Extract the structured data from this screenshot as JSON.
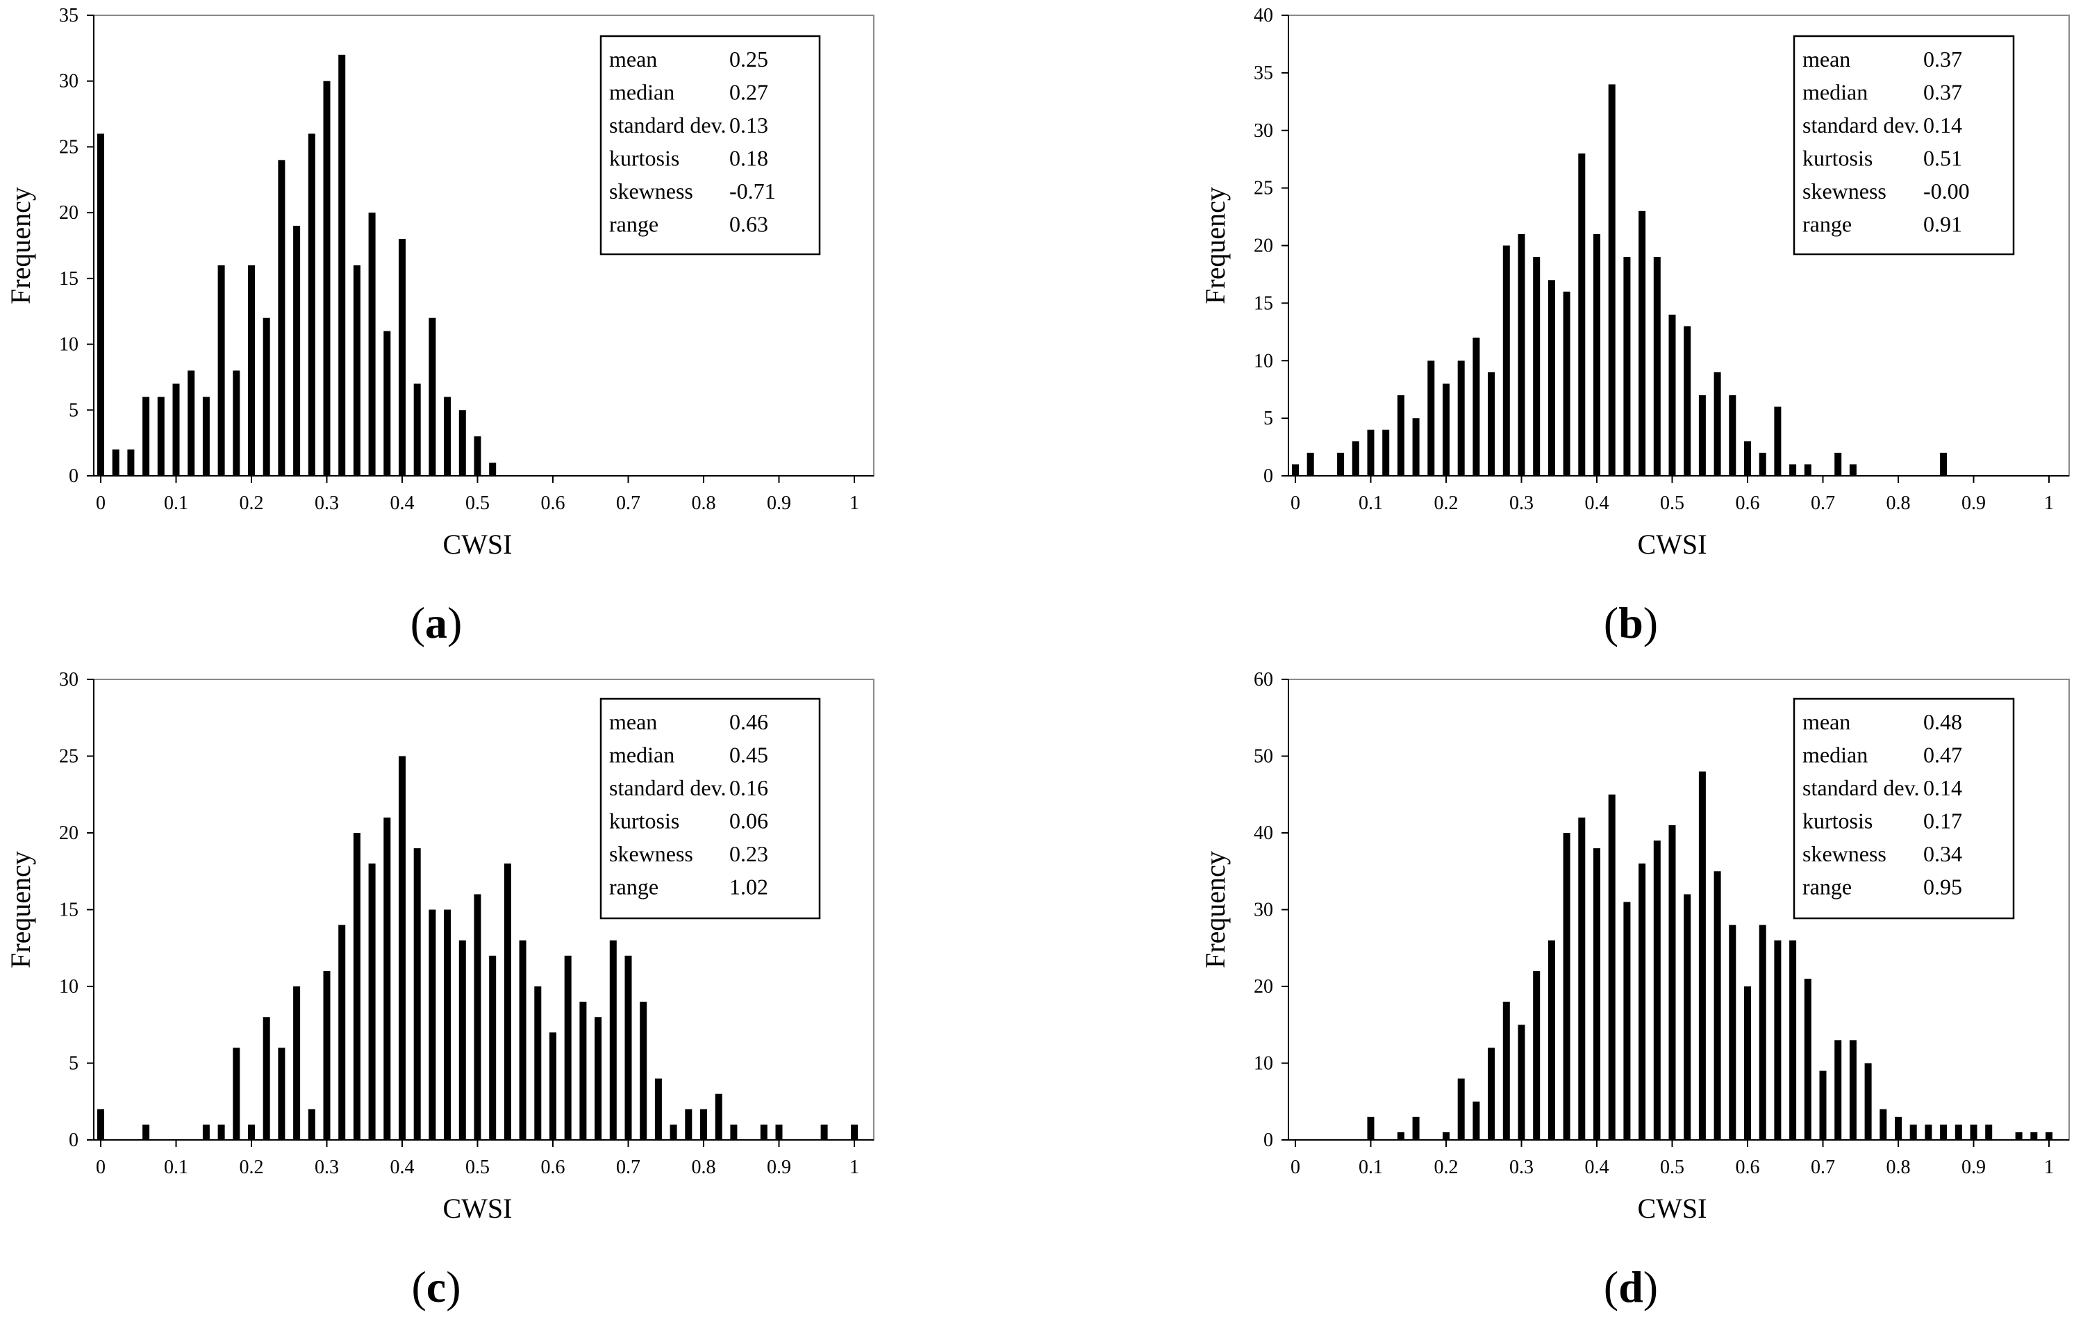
{
  "figure": {
    "panels": [
      "a",
      "b",
      "c",
      "d"
    ]
  },
  "chart_data": [
    {
      "id": "a",
      "panel_label": "a",
      "type": "bar",
      "xlabel": "CWSI",
      "ylabel": "Frequency",
      "xlim": [
        0,
        1
      ],
      "ylim": [
        0,
        35
      ],
      "xticks": [
        "0",
        "0.1",
        "0.2",
        "0.3",
        "0.4",
        "0.5",
        "0.6",
        "0.7",
        "0.8",
        "0.9",
        "1"
      ],
      "yticks": [
        "0",
        "5",
        "10",
        "15",
        "20",
        "25",
        "30",
        "35"
      ],
      "stats": [
        {
          "label": "mean",
          "value": "0.25"
        },
        {
          "label": "median",
          "value": "0.27"
        },
        {
          "label": "standard dev.",
          "value": "0.13"
        },
        {
          "label": "kurtosis",
          "value": "0.18"
        },
        {
          "label": "skewness",
          "value": "-0.71"
        },
        {
          "label": "range",
          "value": "0.63"
        }
      ],
      "bins": [
        {
          "x": 0.0,
          "y": 26
        },
        {
          "x": 0.02,
          "y": 2
        },
        {
          "x": 0.04,
          "y": 2
        },
        {
          "x": 0.06,
          "y": 6
        },
        {
          "x": 0.08,
          "y": 6
        },
        {
          "x": 0.1,
          "y": 7
        },
        {
          "x": 0.12,
          "y": 8
        },
        {
          "x": 0.14,
          "y": 6
        },
        {
          "x": 0.16,
          "y": 16
        },
        {
          "x": 0.18,
          "y": 8
        },
        {
          "x": 0.2,
          "y": 16
        },
        {
          "x": 0.22,
          "y": 12
        },
        {
          "x": 0.24,
          "y": 24
        },
        {
          "x": 0.26,
          "y": 19
        },
        {
          "x": 0.28,
          "y": 26
        },
        {
          "x": 0.3,
          "y": 30
        },
        {
          "x": 0.32,
          "y": 32
        },
        {
          "x": 0.34,
          "y": 16
        },
        {
          "x": 0.36,
          "y": 20
        },
        {
          "x": 0.38,
          "y": 11
        },
        {
          "x": 0.4,
          "y": 18
        },
        {
          "x": 0.42,
          "y": 7
        },
        {
          "x": 0.44,
          "y": 12
        },
        {
          "x": 0.46,
          "y": 6
        },
        {
          "x": 0.48,
          "y": 5
        },
        {
          "x": 0.5,
          "y": 3
        },
        {
          "x": 0.52,
          "y": 1
        }
      ]
    },
    {
      "id": "b",
      "panel_label": "b",
      "type": "bar",
      "xlabel": "CWSI",
      "ylabel": "Frequency",
      "xlim": [
        0,
        1
      ],
      "ylim": [
        0,
        40
      ],
      "xticks": [
        "0",
        "0.1",
        "0.2",
        "0.3",
        "0.4",
        "0.5",
        "0.6",
        "0.7",
        "0.8",
        "0.9",
        "1"
      ],
      "yticks": [
        "0",
        "5",
        "10",
        "15",
        "20",
        "25",
        "30",
        "35",
        "40"
      ],
      "stats": [
        {
          "label": "mean",
          "value": "0.37"
        },
        {
          "label": "median",
          "value": "0.37"
        },
        {
          "label": "standard dev.",
          "value": "0.14"
        },
        {
          "label": "kurtosis",
          "value": "0.51"
        },
        {
          "label": "skewness",
          "value": "-0.00"
        },
        {
          "label": "range",
          "value": "0.91"
        }
      ],
      "bins": [
        {
          "x": 0.0,
          "y": 1
        },
        {
          "x": 0.02,
          "y": 2
        },
        {
          "x": 0.06,
          "y": 2
        },
        {
          "x": 0.08,
          "y": 3
        },
        {
          "x": 0.1,
          "y": 4
        },
        {
          "x": 0.12,
          "y": 4
        },
        {
          "x": 0.14,
          "y": 7
        },
        {
          "x": 0.16,
          "y": 5
        },
        {
          "x": 0.18,
          "y": 10
        },
        {
          "x": 0.2,
          "y": 8
        },
        {
          "x": 0.22,
          "y": 10
        },
        {
          "x": 0.24,
          "y": 12
        },
        {
          "x": 0.26,
          "y": 9
        },
        {
          "x": 0.28,
          "y": 20
        },
        {
          "x": 0.3,
          "y": 21
        },
        {
          "x": 0.32,
          "y": 19
        },
        {
          "x": 0.34,
          "y": 17
        },
        {
          "x": 0.36,
          "y": 16
        },
        {
          "x": 0.38,
          "y": 28
        },
        {
          "x": 0.4,
          "y": 21
        },
        {
          "x": 0.42,
          "y": 34
        },
        {
          "x": 0.44,
          "y": 19
        },
        {
          "x": 0.46,
          "y": 23
        },
        {
          "x": 0.48,
          "y": 19
        },
        {
          "x": 0.5,
          "y": 14
        },
        {
          "x": 0.52,
          "y": 13
        },
        {
          "x": 0.54,
          "y": 7
        },
        {
          "x": 0.56,
          "y": 9
        },
        {
          "x": 0.58,
          "y": 7
        },
        {
          "x": 0.6,
          "y": 3
        },
        {
          "x": 0.62,
          "y": 2
        },
        {
          "x": 0.64,
          "y": 6
        },
        {
          "x": 0.66,
          "y": 1
        },
        {
          "x": 0.68,
          "y": 1
        },
        {
          "x": 0.72,
          "y": 2
        },
        {
          "x": 0.74,
          "y": 1
        },
        {
          "x": 0.86,
          "y": 2
        }
      ]
    },
    {
      "id": "c",
      "panel_label": "c",
      "type": "bar",
      "xlabel": "CWSI",
      "ylabel": "Frequency",
      "xlim": [
        0,
        1
      ],
      "ylim": [
        0,
        30
      ],
      "xticks": [
        "0",
        "0.1",
        "0.2",
        "0.3",
        "0.4",
        "0.5",
        "0.6",
        "0.7",
        "0.8",
        "0.9",
        "1"
      ],
      "yticks": [
        "0",
        "5",
        "10",
        "15",
        "20",
        "25",
        "30"
      ],
      "stats": [
        {
          "label": "mean",
          "value": "0.46"
        },
        {
          "label": "median",
          "value": "0.45"
        },
        {
          "label": "standard dev.",
          "value": "0.16"
        },
        {
          "label": "kurtosis",
          "value": "0.06"
        },
        {
          "label": "skewness",
          "value": "0.23"
        },
        {
          "label": "range",
          "value": "1.02"
        }
      ],
      "bins": [
        {
          "x": 0.0,
          "y": 2
        },
        {
          "x": 0.06,
          "y": 1
        },
        {
          "x": 0.14,
          "y": 1
        },
        {
          "x": 0.16,
          "y": 1
        },
        {
          "x": 0.18,
          "y": 6
        },
        {
          "x": 0.2,
          "y": 1
        },
        {
          "x": 0.22,
          "y": 8
        },
        {
          "x": 0.24,
          "y": 6
        },
        {
          "x": 0.26,
          "y": 10
        },
        {
          "x": 0.28,
          "y": 2
        },
        {
          "x": 0.3,
          "y": 11
        },
        {
          "x": 0.32,
          "y": 14
        },
        {
          "x": 0.34,
          "y": 20
        },
        {
          "x": 0.36,
          "y": 18
        },
        {
          "x": 0.38,
          "y": 21
        },
        {
          "x": 0.4,
          "y": 25
        },
        {
          "x": 0.42,
          "y": 19
        },
        {
          "x": 0.44,
          "y": 15
        },
        {
          "x": 0.46,
          "y": 15
        },
        {
          "x": 0.48,
          "y": 13
        },
        {
          "x": 0.5,
          "y": 16
        },
        {
          "x": 0.52,
          "y": 12
        },
        {
          "x": 0.54,
          "y": 18
        },
        {
          "x": 0.56,
          "y": 13
        },
        {
          "x": 0.58,
          "y": 10
        },
        {
          "x": 0.6,
          "y": 7
        },
        {
          "x": 0.62,
          "y": 12
        },
        {
          "x": 0.64,
          "y": 9
        },
        {
          "x": 0.66,
          "y": 8
        },
        {
          "x": 0.68,
          "y": 13
        },
        {
          "x": 0.7,
          "y": 12
        },
        {
          "x": 0.72,
          "y": 9
        },
        {
          "x": 0.74,
          "y": 4
        },
        {
          "x": 0.76,
          "y": 1
        },
        {
          "x": 0.78,
          "y": 2
        },
        {
          "x": 0.8,
          "y": 2
        },
        {
          "x": 0.82,
          "y": 3
        },
        {
          "x": 0.84,
          "y": 1
        },
        {
          "x": 0.88,
          "y": 1
        },
        {
          "x": 0.9,
          "y": 1
        },
        {
          "x": 0.96,
          "y": 1
        },
        {
          "x": 1.0,
          "y": 1
        }
      ]
    },
    {
      "id": "d",
      "panel_label": "d",
      "type": "bar",
      "xlabel": "CWSI",
      "ylabel": "Frequency",
      "xlim": [
        0,
        1
      ],
      "ylim": [
        0,
        60
      ],
      "xticks": [
        "0",
        "0.1",
        "0.2",
        "0.3",
        "0.4",
        "0.5",
        "0.6",
        "0.7",
        "0.8",
        "0.9",
        "1"
      ],
      "yticks": [
        "0",
        "10",
        "20",
        "30",
        "40",
        "50",
        "60"
      ],
      "stats": [
        {
          "label": "mean",
          "value": "0.48"
        },
        {
          "label": "median",
          "value": "0.47"
        },
        {
          "label": "standard dev.",
          "value": "0.14"
        },
        {
          "label": "kurtosis",
          "value": "0.17"
        },
        {
          "label": "skewness",
          "value": "0.34"
        },
        {
          "label": "range",
          "value": "0.95"
        }
      ],
      "bins": [
        {
          "x": 0.1,
          "y": 3
        },
        {
          "x": 0.14,
          "y": 1
        },
        {
          "x": 0.16,
          "y": 3
        },
        {
          "x": 0.2,
          "y": 1
        },
        {
          "x": 0.22,
          "y": 8
        },
        {
          "x": 0.24,
          "y": 5
        },
        {
          "x": 0.26,
          "y": 12
        },
        {
          "x": 0.28,
          "y": 18
        },
        {
          "x": 0.3,
          "y": 15
        },
        {
          "x": 0.32,
          "y": 22
        },
        {
          "x": 0.34,
          "y": 26
        },
        {
          "x": 0.36,
          "y": 40
        },
        {
          "x": 0.38,
          "y": 42
        },
        {
          "x": 0.4,
          "y": 38
        },
        {
          "x": 0.42,
          "y": 45
        },
        {
          "x": 0.44,
          "y": 31
        },
        {
          "x": 0.46,
          "y": 36
        },
        {
          "x": 0.48,
          "y": 39
        },
        {
          "x": 0.5,
          "y": 41
        },
        {
          "x": 0.52,
          "y": 32
        },
        {
          "x": 0.54,
          "y": 48
        },
        {
          "x": 0.56,
          "y": 35
        },
        {
          "x": 0.58,
          "y": 28
        },
        {
          "x": 0.6,
          "y": 20
        },
        {
          "x": 0.62,
          "y": 28
        },
        {
          "x": 0.64,
          "y": 26
        },
        {
          "x": 0.66,
          "y": 26
        },
        {
          "x": 0.68,
          "y": 21
        },
        {
          "x": 0.7,
          "y": 9
        },
        {
          "x": 0.72,
          "y": 13
        },
        {
          "x": 0.74,
          "y": 13
        },
        {
          "x": 0.76,
          "y": 10
        },
        {
          "x": 0.78,
          "y": 4
        },
        {
          "x": 0.8,
          "y": 3
        },
        {
          "x": 0.82,
          "y": 2
        },
        {
          "x": 0.84,
          "y": 2
        },
        {
          "x": 0.86,
          "y": 2
        },
        {
          "x": 0.88,
          "y": 2
        },
        {
          "x": 0.9,
          "y": 2
        },
        {
          "x": 0.92,
          "y": 2
        },
        {
          "x": 0.96,
          "y": 1
        },
        {
          "x": 0.98,
          "y": 1
        },
        {
          "x": 1.0,
          "y": 1
        }
      ]
    }
  ]
}
